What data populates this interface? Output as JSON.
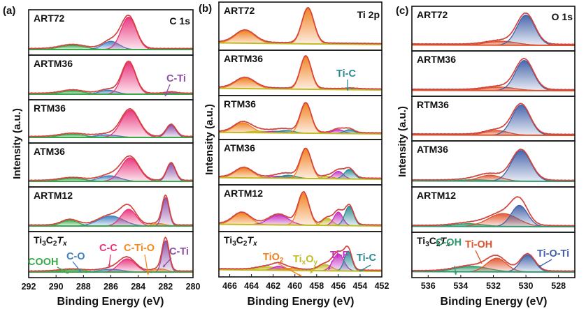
{
  "figure": {
    "panels": [
      "(a)",
      "(b)",
      "(c)"
    ],
    "x_label": "Binding Energy (eV)",
    "y_label": "Intensity (a.u.)"
  },
  "colors": {
    "envelope": "#d9413a",
    "raw": "#666666",
    "C-C": "#e8317a",
    "C-O": "#3e7fc1",
    "COOH": "#3aa84a",
    "C-Ti": "#8e4ea6",
    "C-Ti-O": "#f28a1e",
    "Ti2p_main": "#f0801e",
    "TiO2": "#f0801e",
    "TixOy": "#c2bc24",
    "Ti-F": "#c52fc0",
    "Ti-C": "#2a8a93",
    "Ti-O-Ti": "#4060a8",
    "Ti-OH": "#e0522a",
    "C-OH": "#2e9a6e"
  },
  "chart_data": [
    {
      "type": "line",
      "panel": "(a)",
      "title": "C 1s",
      "xlabel": "Binding Energy (eV)",
      "ylabel": "Intensity (a.u.)",
      "xlim": [
        292,
        280
      ],
      "xticks": [
        292,
        290,
        288,
        286,
        284,
        282,
        280
      ],
      "samples": [
        {
          "name": "ART72",
          "background": "COOH",
          "components": [
            {
              "label": "COOH",
              "center": 288.8,
              "height": 0.12,
              "width": 0.9
            },
            {
              "label": "C-O",
              "center": 286.0,
              "height": 0.24,
              "width": 0.6
            },
            {
              "label": "C-C",
              "center": 284.7,
              "height": 0.95,
              "width": 0.55
            }
          ]
        },
        {
          "name": "ARTM36",
          "components": [
            {
              "label": "COOH",
              "center": 288.8,
              "height": 0.1,
              "width": 0.8
            },
            {
              "label": "C-O",
              "center": 286.2,
              "height": 0.12,
              "width": 0.6
            },
            {
              "label": "C-C",
              "center": 284.7,
              "height": 0.95,
              "width": 0.5
            },
            {
              "label": "C-Ti",
              "center": 281.6,
              "height": 0.04,
              "width": 0.4
            }
          ]
        },
        {
          "name": "RTM36",
          "components": [
            {
              "label": "COOH",
              "center": 288.8,
              "height": 0.1,
              "width": 0.9
            },
            {
              "label": "C-O",
              "center": 286.3,
              "height": 0.08,
              "width": 0.8
            },
            {
              "label": "C-C",
              "center": 284.6,
              "height": 0.85,
              "width": 0.65
            },
            {
              "label": "C-Ti",
              "center": 281.6,
              "height": 0.38,
              "width": 0.35
            }
          ]
        },
        {
          "name": "ATM36",
          "components": [
            {
              "label": "COOH",
              "center": 288.8,
              "height": 0.09,
              "width": 0.9
            },
            {
              "label": "C-O",
              "center": 286.1,
              "height": 0.17,
              "width": 0.75
            },
            {
              "label": "C-C",
              "center": 284.6,
              "height": 0.72,
              "width": 0.65
            },
            {
              "label": "C-Ti",
              "center": 281.6,
              "height": 0.54,
              "width": 0.32
            }
          ]
        },
        {
          "name": "ARTM12",
          "components": [
            {
              "label": "COOH",
              "center": 289.0,
              "height": 0.17,
              "width": 0.6
            },
            {
              "label": "C-O",
              "center": 286.0,
              "height": 0.3,
              "width": 0.9
            },
            {
              "label": "C-C",
              "center": 284.7,
              "height": 0.5,
              "width": 0.55
            },
            {
              "label": "C-Ti-O",
              "center": 282.5,
              "height": 0.07,
              "width": 0.5
            },
            {
              "label": "C-Ti",
              "center": 282.0,
              "height": 0.85,
              "width": 0.25
            }
          ]
        },
        {
          "name": "Ti3C2Tx",
          "components": [
            {
              "label": "COOH",
              "center": 288.8,
              "height": 0.06,
              "width": 0.9
            },
            {
              "label": "C-O",
              "center": 286.0,
              "height": 0.08,
              "width": 0.8
            },
            {
              "label": "C-C",
              "center": 284.8,
              "height": 0.38,
              "width": 0.6
            },
            {
              "label": "C-Ti-O",
              "center": 282.4,
              "height": 0.09,
              "width": 0.5
            },
            {
              "label": "C-Ti",
              "center": 282.0,
              "height": 0.9,
              "width": 0.25
            }
          ]
        }
      ],
      "annotations": [
        {
          "text": "C-Ti",
          "sample": "ARTM36",
          "color": "C-Ti"
        },
        {
          "text": "COOH",
          "sample": "Ti3C2Tx",
          "color": "COOH"
        },
        {
          "text": "C-O",
          "sample": "Ti3C2Tx",
          "color": "C-O"
        },
        {
          "text": "C-C",
          "sample": "Ti3C2Tx",
          "color": "C-C"
        },
        {
          "text": "C-Ti-O",
          "sample": "Ti3C2Tx",
          "color": "C-Ti-O"
        },
        {
          "text": "C-Ti",
          "sample": "Ti3C2Tx",
          "color": "C-Ti"
        }
      ]
    },
    {
      "type": "line",
      "panel": "(b)",
      "title": "Ti 2p",
      "xlabel": "Binding Energy (eV)",
      "ylabel": "Intensity (a.u.)",
      "xlim": [
        467,
        452
      ],
      "xticks": [
        466,
        464,
        462,
        460,
        458,
        456,
        454,
        452
      ],
      "samples": [
        {
          "name": "ART72",
          "components": [
            {
              "label": "TiO2",
              "center": 464.6,
              "height": 0.33,
              "width": 0.9
            },
            {
              "label": "TiO2",
              "center": 458.8,
              "height": 0.95,
              "width": 0.55
            }
          ]
        },
        {
          "name": "ARTM36",
          "components": [
            {
              "label": "TiO2",
              "center": 464.6,
              "height": 0.3,
              "width": 0.9
            },
            {
              "label": "TiO2",
              "center": 459.0,
              "height": 0.95,
              "width": 0.5
            },
            {
              "label": "Ti-C",
              "center": 454.8,
              "height": 0.02,
              "width": 0.5
            }
          ]
        },
        {
          "name": "RTM36",
          "components": [
            {
              "label": "TiO2",
              "center": 464.8,
              "height": 0.3,
              "width": 0.8
            },
            {
              "label": "TixOy",
              "center": 463.3,
              "height": 0.05,
              "width": 0.8
            },
            {
              "label": "Ti-F",
              "center": 461.8,
              "height": 0.05,
              "width": 0.8
            },
            {
              "label": "Ti-C",
              "center": 460.8,
              "height": 0.08,
              "width": 0.7
            },
            {
              "label": "TiO2",
              "center": 459.0,
              "height": 0.9,
              "width": 0.5
            },
            {
              "label": "Ti-F",
              "center": 456.0,
              "height": 0.12,
              "width": 0.5
            },
            {
              "label": "Ti-C",
              "center": 455.0,
              "height": 0.12,
              "width": 0.45
            }
          ]
        },
        {
          "name": "ATM36",
          "components": [
            {
              "label": "TiO2",
              "center": 464.7,
              "height": 0.28,
              "width": 0.8
            },
            {
              "label": "Ti-F",
              "center": 461.5,
              "height": 0.06,
              "width": 0.8
            },
            {
              "label": "Ti-C",
              "center": 460.6,
              "height": 0.09,
              "width": 0.7
            },
            {
              "label": "TiO2",
              "center": 459.0,
              "height": 0.85,
              "width": 0.5
            },
            {
              "label": "TixOy",
              "center": 457.0,
              "height": 0.07,
              "width": 0.5
            },
            {
              "label": "Ti-F",
              "center": 456.0,
              "height": 0.22,
              "width": 0.45
            },
            {
              "label": "Ti-C",
              "center": 455.0,
              "height": 0.28,
              "width": 0.45
            }
          ]
        },
        {
          "name": "ARTM12",
          "components": [
            {
              "label": "TiO2",
              "center": 464.9,
              "height": 0.32,
              "width": 0.8
            },
            {
              "label": "Ti-F",
              "center": 461.5,
              "height": 0.28,
              "width": 0.9
            },
            {
              "label": "TiO2",
              "center": 459.2,
              "height": 0.9,
              "width": 0.5
            },
            {
              "label": "TixOy",
              "center": 457.0,
              "height": 0.2,
              "width": 0.45
            },
            {
              "label": "Ti-F",
              "center": 456.0,
              "height": 0.38,
              "width": 0.4
            },
            {
              "label": "Ti-C",
              "center": 455.0,
              "height": 0.55,
              "width": 0.4
            }
          ]
        },
        {
          "name": "Ti3C2Tx",
          "components": [
            {
              "label": "TixOy",
              "center": 462.5,
              "height": 0.1,
              "width": 0.9
            },
            {
              "label": "Ti-F",
              "center": 461.5,
              "height": 0.12,
              "width": 0.5
            },
            {
              "label": "TiO2",
              "center": 460.5,
              "height": 0.06,
              "width": 0.7
            },
            {
              "label": "TixOy",
              "center": 457.2,
              "height": 0.18,
              "width": 0.6
            },
            {
              "label": "Ti-F",
              "center": 456.0,
              "height": 0.5,
              "width": 0.5
            },
            {
              "label": "Ti-C",
              "center": 455.1,
              "height": 0.58,
              "width": 0.35
            }
          ]
        }
      ],
      "annotations": [
        {
          "text": "Ti-C",
          "sample": "ARTM36",
          "color": "Ti-C"
        },
        {
          "text": "TiO2",
          "sample": "Ti3C2Tx",
          "color": "TiO2"
        },
        {
          "text": "TixOy",
          "sample": "Ti3C2Tx",
          "color": "TixOy"
        },
        {
          "text": "Ti-F",
          "sample": "Ti3C2Tx",
          "color": "Ti-F"
        },
        {
          "text": "Ti-C",
          "sample": "Ti3C2Tx",
          "color": "Ti-C"
        }
      ]
    },
    {
      "type": "line",
      "panel": "(c)",
      "title": "O 1s",
      "xlabel": "Binding Energy (eV)",
      "ylabel": "Intensity (a.u.)",
      "xlim": [
        537,
        527
      ],
      "xticks": [
        536,
        534,
        532,
        530,
        528
      ],
      "samples": [
        {
          "name": "ART72",
          "components": [
            {
              "label": "Ti-OH",
              "center": 531.5,
              "height": 0.12,
              "width": 0.9
            },
            {
              "label": "Ti-O-Ti",
              "center": 530.0,
              "height": 0.9,
              "width": 0.55
            }
          ]
        },
        {
          "name": "ARTM36",
          "components": [
            {
              "label": "Ti-OH",
              "center": 531.6,
              "height": 0.1,
              "width": 0.9
            },
            {
              "label": "Ti-O-Ti",
              "center": 530.1,
              "height": 0.88,
              "width": 0.55
            }
          ]
        },
        {
          "name": "RTM36",
          "components": [
            {
              "label": "Ti-OH",
              "center": 531.8,
              "height": 0.14,
              "width": 0.7
            },
            {
              "label": "Ti-O-Ti",
              "center": 530.3,
              "height": 0.9,
              "width": 0.55
            }
          ]
        },
        {
          "name": "ATM36",
          "components": [
            {
              "label": "C-OH",
              "center": 533.2,
              "height": 0.04,
              "width": 0.9
            },
            {
              "label": "Ti-OH",
              "center": 532.2,
              "height": 0.17,
              "width": 0.7
            },
            {
              "label": "Ti-O-Ti",
              "center": 530.3,
              "height": 0.88,
              "width": 0.6
            }
          ]
        },
        {
          "name": "ARTM12",
          "components": [
            {
              "label": "C-OH",
              "center": 533.5,
              "height": 0.08,
              "width": 0.9
            },
            {
              "label": "Ti-OH",
              "center": 531.4,
              "height": 0.38,
              "width": 0.9
            },
            {
              "label": "Ti-O-Ti",
              "center": 530.4,
              "height": 0.62,
              "width": 0.5
            }
          ]
        },
        {
          "name": "Ti3C2Tx",
          "components": [
            {
              "label": "C-OH",
              "center": 533.3,
              "height": 0.16,
              "width": 1.0
            },
            {
              "label": "Ti-OH",
              "center": 531.8,
              "height": 0.4,
              "width": 0.6
            },
            {
              "label": "Ti-O-Ti",
              "center": 529.9,
              "height": 0.5,
              "width": 0.45
            }
          ]
        }
      ],
      "annotations": [
        {
          "text": "C-OH",
          "sample": "Ti3C2Tx",
          "color": "C-OH"
        },
        {
          "text": "Ti-OH",
          "sample": "Ti3C2Tx",
          "color": "Ti-OH"
        },
        {
          "text": "Ti-O-Ti",
          "sample": "Ti3C2Tx",
          "color": "Ti-O-Ti"
        }
      ]
    }
  ]
}
